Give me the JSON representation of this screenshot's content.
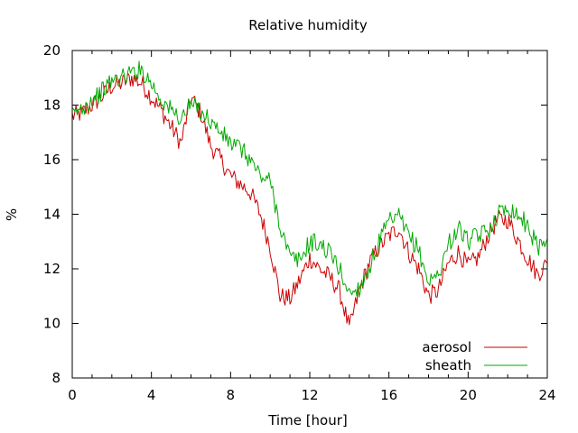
{
  "chart_data": {
    "type": "line",
    "title": "Relative humidity",
    "xlabel": "Time [hour]",
    "ylabel": "%",
    "xlim": [
      0,
      24
    ],
    "ylim": [
      8,
      20
    ],
    "x_ticks": [
      0,
      4,
      8,
      12,
      16,
      20,
      24
    ],
    "y_ticks": [
      8,
      10,
      12,
      14,
      16,
      18,
      20
    ],
    "x_tick_labels": [
      "0",
      "4",
      "8",
      "12",
      "16",
      "20",
      "24"
    ],
    "y_tick_labels": [
      "8",
      "10",
      "12",
      "14",
      "16",
      "18",
      "20"
    ],
    "grid": false,
    "legend_position": "bottom-right",
    "series": [
      {
        "name": "aerosol",
        "color": "#cc0000",
        "x": [
          0,
          0.5,
          1,
          1.5,
          2,
          2.5,
          3,
          3.5,
          4,
          4.5,
          5,
          5.5,
          6,
          6.5,
          7,
          7.5,
          8,
          8.5,
          9,
          9.5,
          10,
          10.5,
          11,
          11.5,
          12,
          12.5,
          13,
          13.5,
          14,
          14.5,
          15,
          15.5,
          16,
          16.5,
          17,
          17.5,
          18,
          18.5,
          19,
          19.5,
          20,
          20.5,
          21,
          21.5,
          22,
          22.5,
          23,
          23.5,
          24
        ],
        "values": [
          17.6,
          17.7,
          18.0,
          18.3,
          18.7,
          18.8,
          19.0,
          18.8,
          18.3,
          17.8,
          17.2,
          16.6,
          18.3,
          17.7,
          16.5,
          16.0,
          15.4,
          15.1,
          14.8,
          14.0,
          12.8,
          11.0,
          10.9,
          11.6,
          12.4,
          12.0,
          11.7,
          11.2,
          9.8,
          11.2,
          12.2,
          12.8,
          13.2,
          13.5,
          12.6,
          12.0,
          11.0,
          11.2,
          12.2,
          12.6,
          12.1,
          12.4,
          13.2,
          13.8,
          13.8,
          13.1,
          12.4,
          11.8,
          12.2
        ]
      },
      {
        "name": "sheath",
        "color": "#00aa00",
        "x": [
          0,
          0.5,
          1,
          1.5,
          2,
          2.5,
          3,
          3.5,
          4,
          4.5,
          5,
          5.5,
          6,
          6.5,
          7,
          7.5,
          8,
          8.5,
          9,
          9.5,
          10,
          10.5,
          11,
          11.5,
          12,
          12.5,
          13,
          13.5,
          14,
          14.5,
          15,
          15.5,
          16,
          16.5,
          17,
          17.5,
          18,
          18.5,
          19,
          19.5,
          20,
          20.5,
          21,
          21.5,
          22,
          22.5,
          23,
          23.5,
          24
        ],
        "values": [
          17.6,
          17.9,
          18.2,
          18.5,
          18.9,
          19.0,
          19.2,
          19.3,
          18.8,
          18.2,
          17.8,
          17.5,
          18.0,
          17.8,
          17.4,
          17.0,
          16.6,
          16.4,
          16.0,
          15.4,
          15.2,
          13.6,
          12.4,
          12.3,
          13.0,
          12.9,
          12.6,
          12.0,
          11.1,
          11.3,
          12.0,
          13.0,
          13.7,
          13.9,
          13.2,
          12.7,
          11.5,
          11.8,
          12.9,
          13.5,
          13.0,
          13.2,
          13.4,
          14.0,
          14.3,
          14.0,
          13.6,
          12.8,
          13.1
        ]
      }
    ]
  }
}
